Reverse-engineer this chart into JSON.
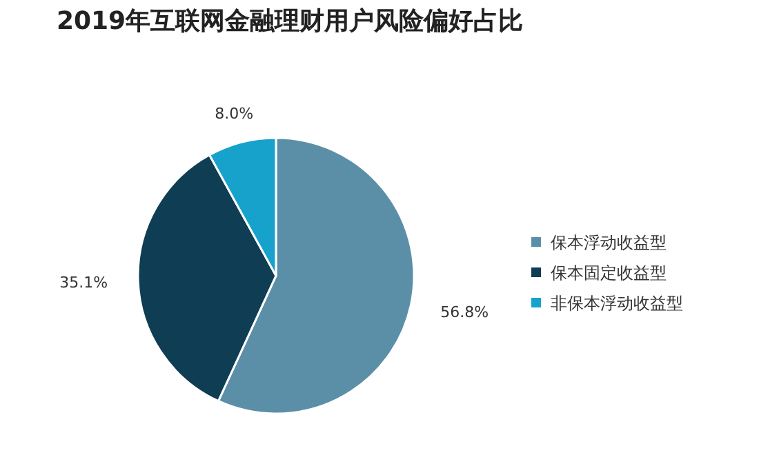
{
  "chart_data": {
    "type": "pie",
    "title": "2019年互联网金融理财用户风险偏好占比",
    "categories": [
      "保本浮动收益型",
      "保本固定收益型",
      "非保本浮动收益型"
    ],
    "values": [
      56.8,
      35.1,
      8.0
    ],
    "colors": [
      "#5b8fa8",
      "#0f3d53",
      "#17a2cc"
    ],
    "value_labels": [
      "56.8%",
      "35.1%",
      "8.0%"
    ],
    "legend": "right"
  }
}
